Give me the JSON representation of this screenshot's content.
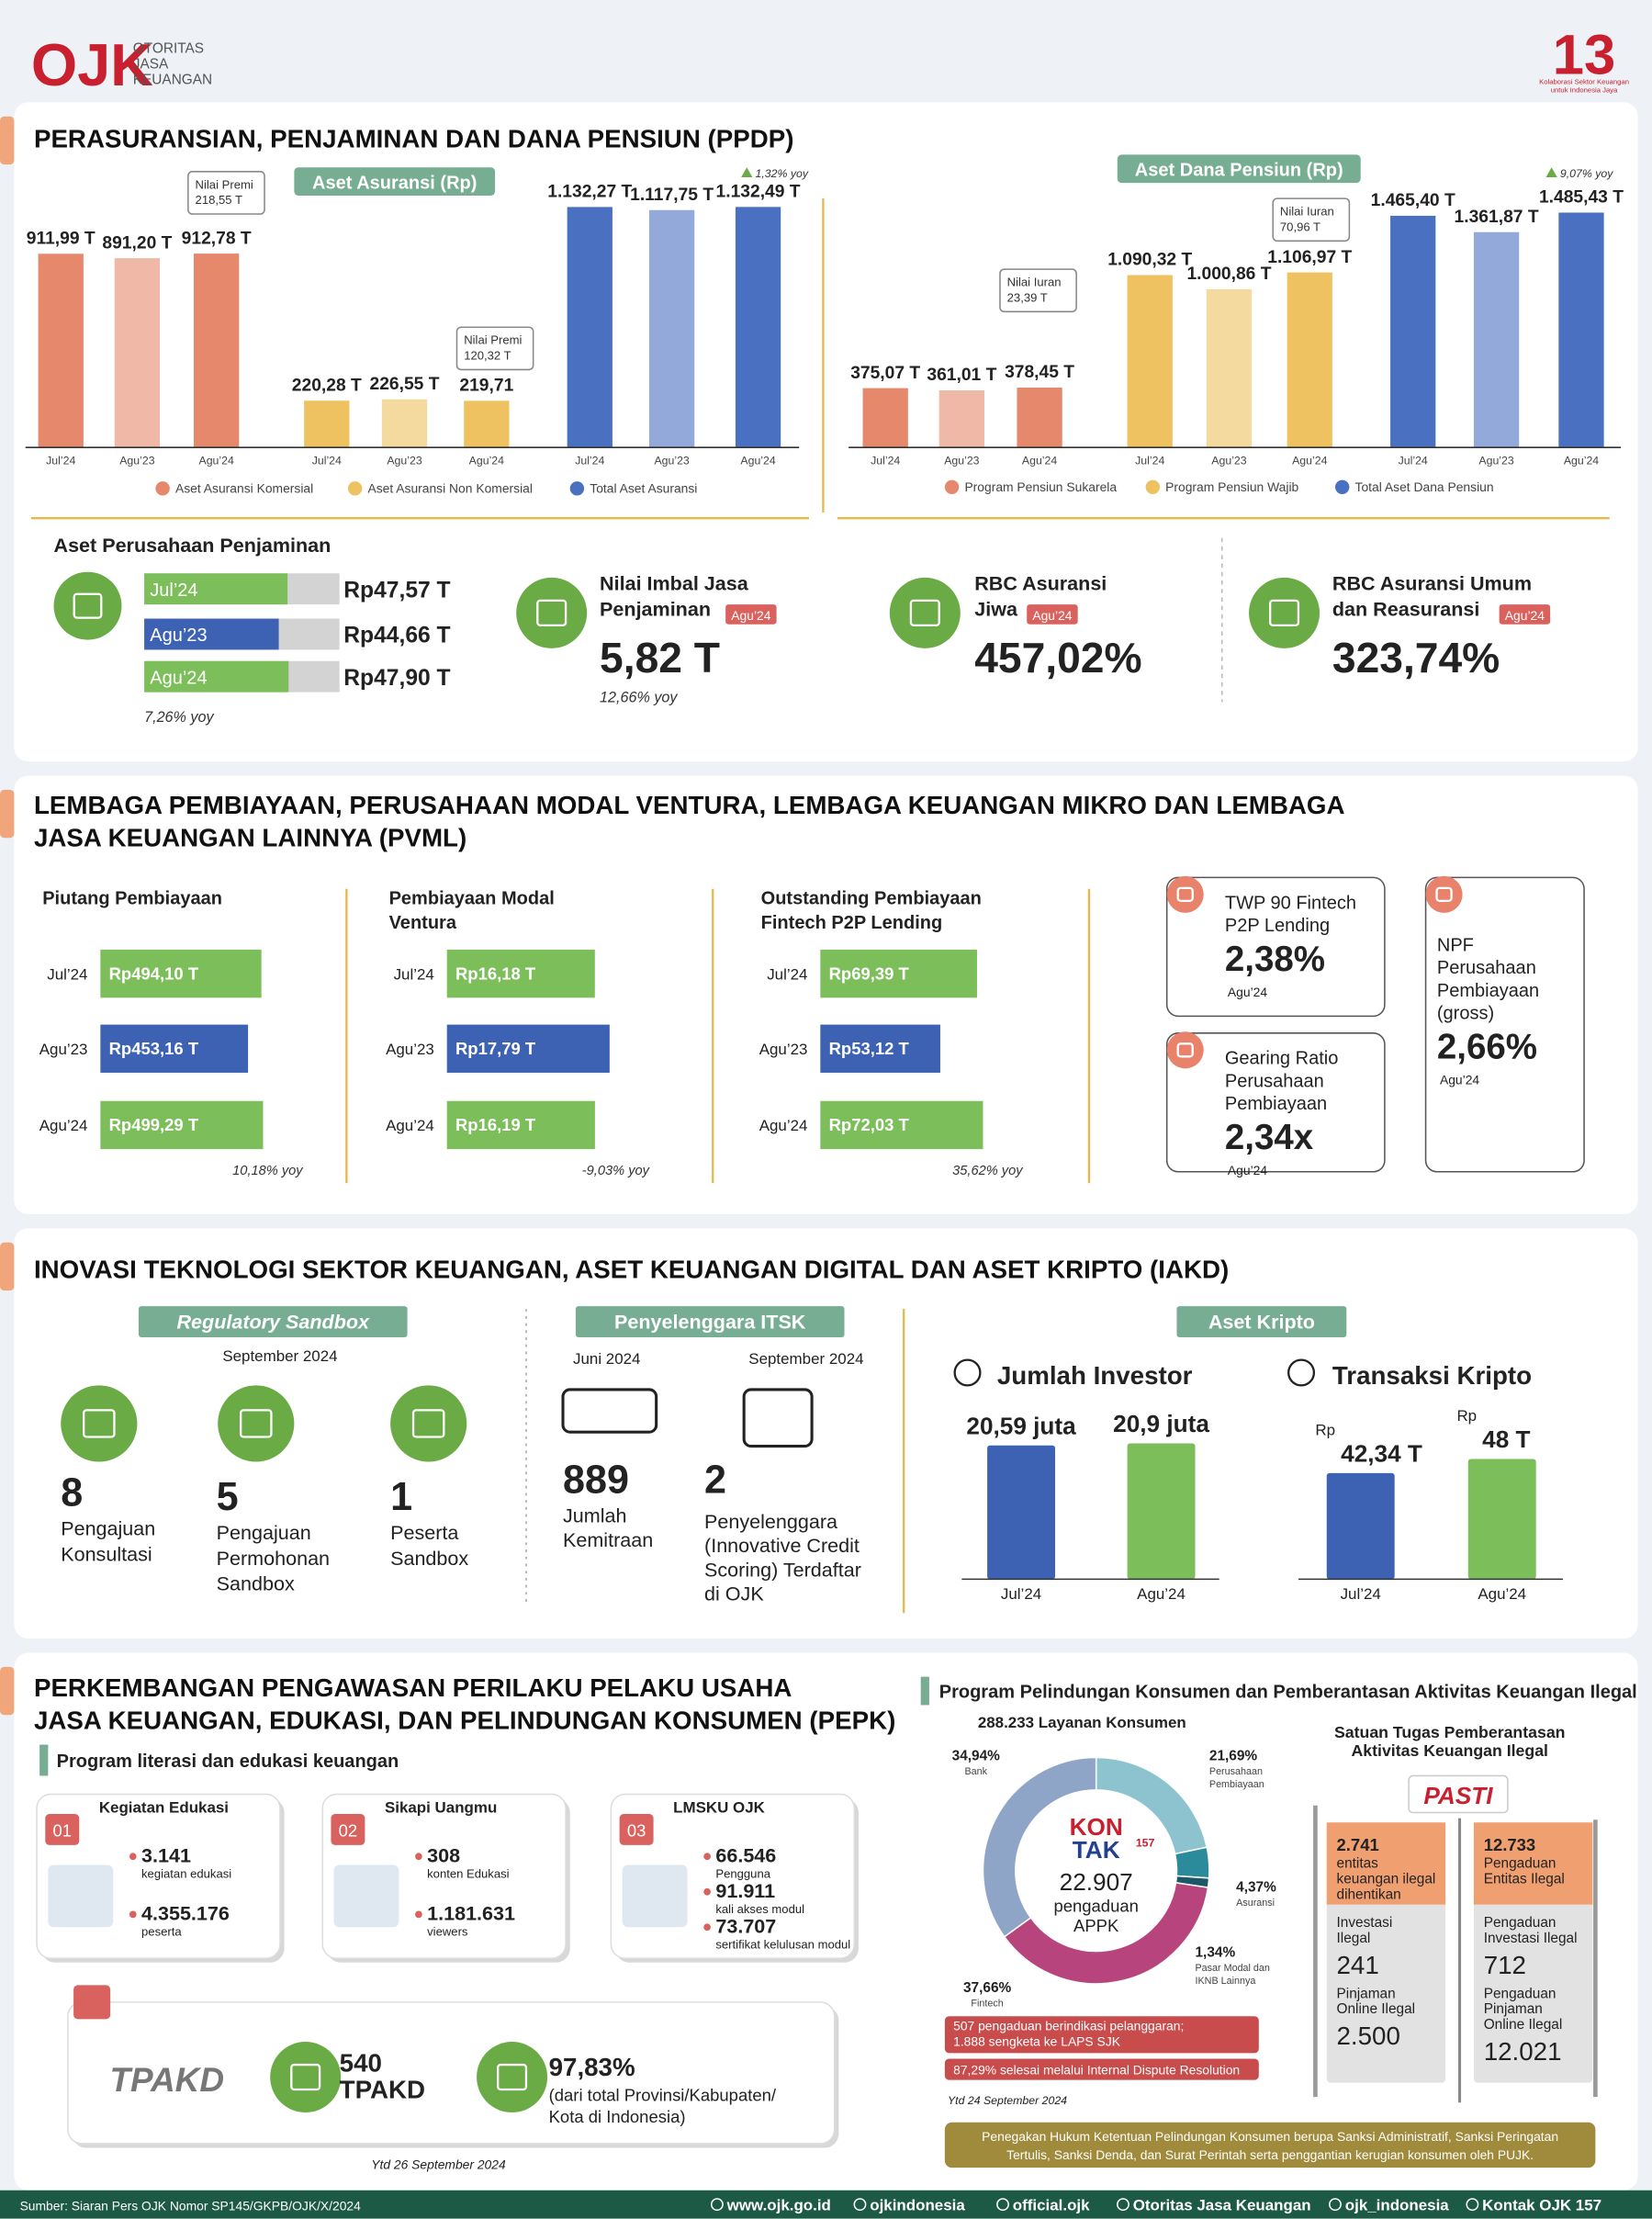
{
  "header": {
    "logo_name": "OJK",
    "logo_lines": [
      "OTORITAS",
      "JASA",
      "KEUANGAN"
    ],
    "anniversary": "13",
    "anniversary_tagline": [
      "Kolaborasi Sektor Keuangan",
      "untuk Indonesia Jaya"
    ]
  },
  "ppdp": {
    "title": "PERASURANSIAN, PENJAMINAN DAN DANA PENSIUN (PPDP)",
    "insurance_chart": {
      "type": "bar",
      "title": "Aset Asuransi (Rp)",
      "categories": [
        "Jul’24",
        "Agu’23",
        "Agu’24"
      ],
      "series": [
        {
          "name": "Aset Asuransi Komersial",
          "color": "#e5886c",
          "values": [
            911.99,
            891.2,
            912.78
          ],
          "value_labels": [
            "911,99 T",
            "891,20 T",
            "912,78 T"
          ]
        },
        {
          "name": "Aset Asuransi Non Komersial",
          "color": "#eec260",
          "values": [
            220.28,
            226.55,
            219.71
          ],
          "value_labels": [
            "220,28 T",
            "226,55 T",
            "219,71"
          ]
        },
        {
          "name": "Total Aset Asuransi",
          "color": "#4a70c2",
          "values": [
            1132.27,
            1117.75,
            1132.49
          ],
          "value_labels": [
            "1.132,27 T",
            "1.117,75 T",
            "1.132,49 T"
          ]
        }
      ],
      "annotations": [
        {
          "lines": [
            "Nilai Premi",
            "218,55 T"
          ]
        },
        {
          "lines": [
            "Nilai Premi",
            "120,32 T"
          ]
        }
      ],
      "growth": "1,32% yoy"
    },
    "pension_chart": {
      "type": "bar",
      "title": "Aset Dana Pensiun (Rp)",
      "categories": [
        "Jul’24",
        "Agu’23",
        "Agu’24"
      ],
      "series": [
        {
          "name": "Program Pensiun Sukarela",
          "color": "#e5886c",
          "values": [
            375.07,
            361.01,
            378.45
          ],
          "value_labels": [
            "375,07 T",
            "361,01 T",
            "378,45 T"
          ]
        },
        {
          "name": "Program Pensiun Wajib",
          "color": "#eec260",
          "values": [
            1090.32,
            1000.86,
            1106.97
          ],
          "value_labels": [
            "1.090,32 T",
            "1.000,86 T",
            "1.106,97 T"
          ]
        },
        {
          "name": "Total Aset Dana Pensiun",
          "color": "#4a70c2",
          "values": [
            1465.4,
            1361.87,
            1485.43
          ],
          "value_labels": [
            "1.465,40 T",
            "1.361,87 T",
            "1.485,43 T"
          ]
        }
      ],
      "annotations": [
        {
          "lines": [
            "Nilai Iuran",
            "23,39 T"
          ]
        },
        {
          "lines": [
            "Nilai Iuran",
            "70,96 T"
          ]
        }
      ],
      "growth": "9,07% yoy"
    },
    "guarantee": {
      "type": "bar",
      "title": "Aset Perusahaan Penjaminan",
      "categories": [
        "Jul’24",
        "Agu’23",
        "Agu’24"
      ],
      "values": [
        47.57,
        44.66,
        47.9
      ],
      "value_labels": [
        "Rp47,57 T",
        "Rp44,66 T",
        "Rp47,90 T"
      ],
      "colors": [
        "#7cbf5a",
        "#3d62b3",
        "#7cbf5a"
      ],
      "note": "7,26% yoy"
    },
    "guarantee_fee": {
      "title_lines": [
        "Nilai Imbal Jasa",
        "Penjaminan"
      ],
      "period": "Agu’24",
      "value": "5,82 T",
      "note": "12,66% yoy"
    },
    "rbc_life": {
      "title_lines": [
        "RBC Asuransi",
        "Jiwa"
      ],
      "period": "Agu’24",
      "value": "457,02%"
    },
    "rbc_general": {
      "title_lines": [
        "RBC Asuransi Umum",
        "dan Reasuransi"
      ],
      "period": "Agu’24",
      "value": "323,74%"
    }
  },
  "pvml": {
    "title_lines": [
      "LEMBAGA PEMBIAYAAN, PERUSAHAAN MODAL VENTURA, LEMBAGA KEUANGAN MIKRO DAN LEMBAGA",
      "JASA KEUANGAN LAINNYA (PVML)"
    ],
    "panels": [
      {
        "type": "bar",
        "title_lines": [
          "Piutang Pembiayaan"
        ],
        "categories": [
          "Jul’24",
          "Agu’23",
          "Agu’24"
        ],
        "values": [
          494.1,
          453.16,
          499.29
        ],
        "value_labels": [
          "Rp494,10 T",
          "Rp453,16 T",
          "Rp499,29 T"
        ],
        "colors": [
          "#7cbf5a",
          "#3d62b3",
          "#7cbf5a"
        ],
        "note": "10,18% yoy"
      },
      {
        "type": "bar",
        "title_lines": [
          "Pembiayaan Modal",
          "Ventura"
        ],
        "categories": [
          "Jul’24",
          "Agu’23",
          "Agu’24"
        ],
        "values": [
          16.18,
          17.79,
          16.19
        ],
        "value_labels": [
          "Rp16,18 T",
          "Rp17,79 T",
          "Rp16,19 T"
        ],
        "colors": [
          "#7cbf5a",
          "#3d62b3",
          "#7cbf5a"
        ],
        "note": "-9,03% yoy"
      },
      {
        "type": "bar",
        "title_lines": [
          "Outstanding Pembiayaan",
          "Fintech P2P Lending"
        ],
        "categories": [
          "Jul’24",
          "Agu’23",
          "Agu’24"
        ],
        "values": [
          69.39,
          53.12,
          72.03
        ],
        "value_labels": [
          "Rp69,39 T",
          "Rp53,12 T",
          "Rp72,03 T"
        ],
        "colors": [
          "#7cbf5a",
          "#3d62b3",
          "#7cbf5a"
        ],
        "note": "35,62% yoy"
      }
    ],
    "cards": [
      {
        "lines": [
          "TWP 90 Fintech",
          "P2P Lending"
        ],
        "value": "2,38%",
        "period": "Agu’24"
      },
      {
        "lines": [
          "Gearing Ratio",
          "Perusahaan",
          "Pembiayaan"
        ],
        "value": "2,34x",
        "period": "Agu’24"
      },
      {
        "lines": [
          "NPF",
          "Perusahaan",
          "Pembiayaan",
          "(gross)"
        ],
        "value": "2,66%",
        "period": "Agu’24"
      }
    ]
  },
  "iakd": {
    "title": "INOVASI TEKNOLOGI SEKTOR KEUANGAN, ASET KEUANGAN DIGITAL DAN ASET KRIPTO (IAKD)",
    "sandbox": {
      "heading": "Regulatory Sandbox",
      "period": "September 2024",
      "items": [
        {
          "value": 8,
          "lines": [
            "Pengajuan",
            "Konsultasi"
          ]
        },
        {
          "value": 5,
          "lines": [
            "Pengajuan",
            "Permohonan",
            "Sandbox"
          ]
        },
        {
          "value": 1,
          "lines": [
            "Peserta",
            "Sandbox"
          ]
        }
      ]
    },
    "itsk": {
      "heading": "Penyelenggara ITSK",
      "items": [
        {
          "period": "Juni 2024",
          "value": 889,
          "lines": [
            "Jumlah",
            "Kemitraan"
          ]
        },
        {
          "period": "September 2024",
          "value": 2,
          "lines": [
            "Penyelenggara",
            "(Innovative Credit",
            "Scoring) Terdaftar",
            "di OJK"
          ]
        }
      ]
    },
    "crypto": {
      "heading": "Aset Kripto",
      "investors": {
        "type": "bar",
        "title": "Jumlah Investor",
        "categories": [
          "Jul’24",
          "Agu’24"
        ],
        "values": [
          20.59,
          20.9
        ],
        "value_labels": [
          "20,59 juta",
          "20,9 juta"
        ],
        "colors": [
          "#3d62b3",
          "#7cbf5a"
        ]
      },
      "transactions": {
        "type": "bar",
        "title": "Transaksi Kripto",
        "unit_prefix": "Rp",
        "categories": [
          "Jul’24",
          "Agu’24"
        ],
        "values": [
          42.34,
          48
        ],
        "value_labels": [
          "42,34 T",
          "48 T"
        ],
        "colors": [
          "#3d62b3",
          "#7cbf5a"
        ]
      }
    }
  },
  "pepk": {
    "title_lines": [
      "PERKEMBANGAN PENGAWASAN PERILAKU PELAKU USAHA",
      "JASA KEUANGAN, EDUKASI, DAN PELINDUNGAN KONSUMEN (PEPK)"
    ],
    "literacy": {
      "title": "Program literasi dan edukasi keuangan",
      "cards": [
        {
          "number": "01",
          "title": "Kegiatan Edukasi",
          "items": [
            {
              "value": "3.141",
              "label": "kegiatan edukasi"
            },
            {
              "value": "4.355.176",
              "label": "peserta"
            }
          ]
        },
        {
          "number": "02",
          "title": "Sikapi Uangmu",
          "items": [
            {
              "value": "308",
              "label": "konten Edukasi"
            },
            {
              "value": "1.181.631",
              "label": "viewers"
            }
          ]
        },
        {
          "number": "03",
          "title": "LMSKU OJK",
          "items": [
            {
              "value": "66.546",
              "label": "Pengguna"
            },
            {
              "value": "91.911",
              "label": "kali akses modul"
            },
            {
              "value": "73.707",
              "label": "sertifikat kelulusan modul"
            }
          ]
        }
      ]
    },
    "tpakd": {
      "logo": "TPAKD",
      "value": "540",
      "label": "TPAKD",
      "percent": "97,83%",
      "note_lines": [
        "(dari total Provinsi/Kabupaten/",
        "Kota di Indonesia)"
      ],
      "footnote": "Ytd 26 September 2024"
    },
    "protection": {
      "title": "Program Pelindungan Konsumen dan Pemberantasan Aktivitas Keuangan Ilegal",
      "donut": {
        "type": "pie",
        "title": "288.233 Layanan Konsumen",
        "categories": [
          [
            "Perusahaan",
            "Pembiayaan"
          ],
          [
            "Asuransi"
          ],
          [
            "Pasar Modal dan",
            "IKNB Lainnya"
          ],
          [
            "Fintech"
          ],
          [
            "Bank"
          ]
        ],
        "values": [
          21.69,
          4.37,
          1.34,
          37.66,
          34.94
        ],
        "value_labels": [
          "21,69%",
          "4,37%",
          "1,34%",
          "37,66%",
          "34,94%"
        ],
        "colors": [
          "#8cc3cf",
          "#2b8b9a",
          "#1d5868",
          "#b8447e",
          "#8fa5c8"
        ],
        "logo": [
          "KON",
          "TAK"
        ],
        "logo_number": "157",
        "center_value": "22.907",
        "center_lines": [
          "pengaduan",
          "APPK"
        ]
      },
      "notes": [
        "507 pengaduan berindikasi pelanggaran;",
        "1.888 sengketa ke LAPS SJK"
      ],
      "note_resolution": "87,29% selesai melalui Internal Dispute Resolution",
      "footnote": "Ytd 24 September 2024"
    },
    "satgas": {
      "title_lines": [
        "Satuan Tugas Pemberantasan",
        "Aktivitas Keuangan Ilegal"
      ],
      "logo": "PASTI",
      "columns": [
        {
          "head_value": "2.741",
          "head_lines": [
            "entitas",
            "keuangan ilegal",
            "dihentikan"
          ],
          "rows": [
            {
              "lines": [
                "Investasi",
                "Ilegal"
              ],
              "value": "241"
            },
            {
              "lines": [
                "Pinjaman",
                "Online Ilegal"
              ],
              "value": "2.500"
            }
          ]
        },
        {
          "head_value": "12.733",
          "head_lines": [
            "Pengaduan",
            "Entitas Ilegal"
          ],
          "rows": [
            {
              "lines": [
                "Pengaduan",
                "Investasi Ilegal"
              ],
              "value": "712"
            },
            {
              "lines": [
                "Pengaduan",
                "Pinjaman",
                "Online Ilegal"
              ],
              "value": "12.021"
            }
          ]
        }
      ]
    },
    "enforcement_lines": [
      "Penegakan Hukum Ketentuan Pelindungan Konsumen berupa Sanksi Administratif, Sanksi Peringatan",
      "Tertulis, Sanksi Denda, dan Surat Perintah serta penggantian kerugian konsumen oleh PUJK."
    ]
  },
  "footer": {
    "source": "Sumber: Siaran Pers OJK Nomor SP145/GKPB/OJK/X/2024",
    "links": [
      "www.ojk.go.id",
      "ojkindonesia",
      "official.ojk",
      "Otoritas Jasa Keuangan",
      "ojk_indonesia",
      "Kontak OJK 157"
    ]
  }
}
